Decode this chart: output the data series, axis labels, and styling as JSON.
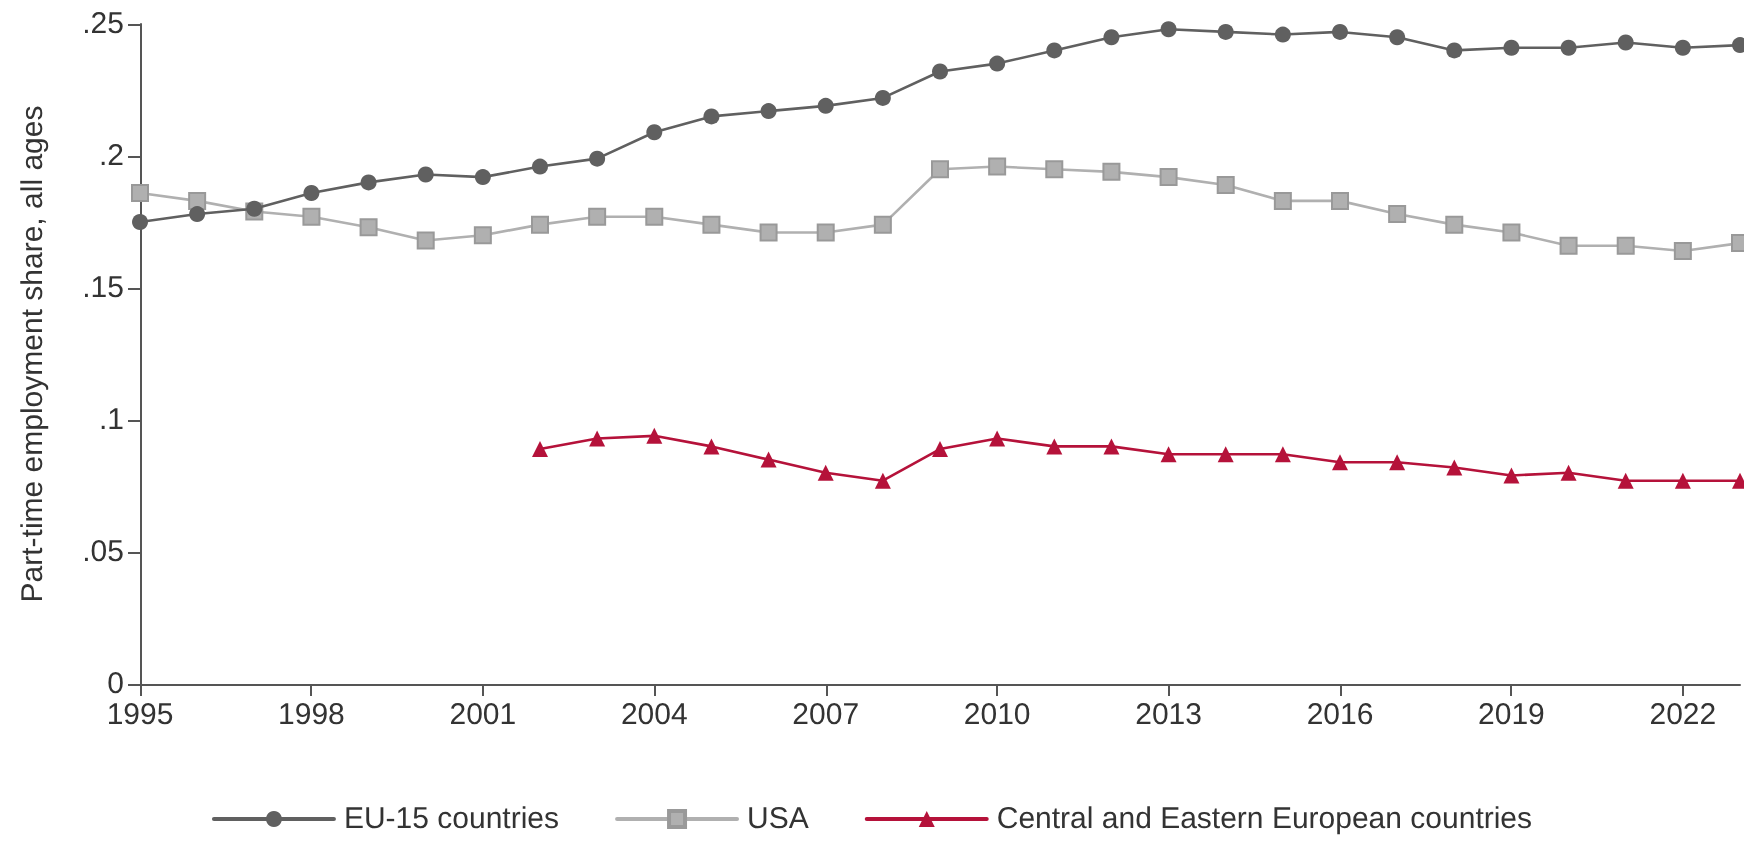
{
  "chart_data": {
    "type": "line",
    "ylabel": "Part-time employment share, all ages",
    "x": [
      1995,
      1996,
      1997,
      1998,
      1999,
      2000,
      2001,
      2002,
      2003,
      2004,
      2005,
      2006,
      2007,
      2008,
      2009,
      2010,
      2011,
      2012,
      2013,
      2014,
      2015,
      2016,
      2017,
      2018,
      2019,
      2020,
      2021,
      2022,
      2023
    ],
    "series": [
      {
        "name": "EU-15 countries",
        "color": "#606060",
        "marker": "circle",
        "values": [
          0.175,
          0.178,
          0.18,
          0.186,
          0.19,
          0.193,
          0.192,
          0.196,
          0.199,
          0.209,
          0.215,
          0.217,
          0.219,
          0.222,
          0.232,
          0.235,
          0.24,
          0.245,
          0.248,
          0.247,
          0.246,
          0.247,
          0.245,
          0.24,
          0.241,
          0.241,
          0.243,
          0.241,
          0.242
        ]
      },
      {
        "name": "USA",
        "color": "#b0b0b0",
        "marker": "square",
        "values": [
          0.186,
          0.183,
          0.179,
          0.177,
          0.173,
          0.168,
          0.17,
          0.174,
          0.177,
          0.177,
          0.174,
          0.171,
          0.171,
          0.174,
          0.195,
          0.196,
          0.195,
          0.194,
          0.192,
          0.189,
          0.183,
          0.183,
          0.178,
          0.174,
          0.171,
          0.166,
          0.166,
          0.164,
          0.167
        ]
      },
      {
        "name": "Central and Eastern European countries",
        "color": "#b5123a",
        "marker": "triangle",
        "values": [
          null,
          null,
          null,
          null,
          null,
          null,
          null,
          0.089,
          0.093,
          0.094,
          0.09,
          0.085,
          0.08,
          0.077,
          0.089,
          0.093,
          0.09,
          0.09,
          0.087,
          0.087,
          0.087,
          0.084,
          0.084,
          0.082,
          0.079,
          0.08,
          0.077,
          0.077,
          0.077
        ]
      }
    ],
    "xlim": [
      1995,
      2023
    ],
    "xticks": [
      1995,
      1998,
      2001,
      2004,
      2007,
      2010,
      2013,
      2016,
      2019,
      2022
    ],
    "ylim": [
      0,
      0.25
    ],
    "yticks": [
      {
        "value": 0,
        "label": "0"
      },
      {
        "value": 0.05,
        "label": ".05"
      },
      {
        "value": 0.1,
        "label": ".1"
      },
      {
        "value": 0.15,
        "label": ".15"
      },
      {
        "value": 0.2,
        "label": ".2"
      },
      {
        "value": 0.25,
        "label": ".25"
      }
    ],
    "grid": false,
    "legend": "bottom",
    "line_style": "solid"
  }
}
